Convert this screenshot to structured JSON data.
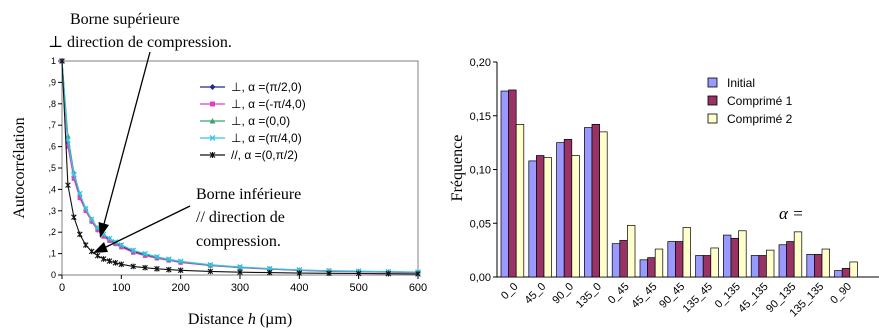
{
  "chart_data": [
    {
      "type": "line",
      "xlabel_prefix": "Distance ",
      "xlabel_var": "h",
      "xlabel_suffix": " (µm)",
      "ylabel": "Autocorrélation",
      "xlim": [
        0,
        600
      ],
      "ylim": [
        0,
        1
      ],
      "x_ticks": [
        "0",
        "100",
        "200",
        "300",
        "400",
        "500",
        "600"
      ],
      "y_ticks": [
        "0",
        ",1",
        ",2",
        ",3",
        ",4",
        ",5",
        ",6",
        ",7",
        ",8",
        ",9",
        "1"
      ],
      "grid": false,
      "legend_position": "top-right",
      "x": [
        0,
        10,
        20,
        30,
        40,
        50,
        60,
        70,
        80,
        90,
        100,
        120,
        140,
        160,
        180,
        200,
        250,
        300,
        350,
        400,
        450,
        500,
        550,
        600
      ],
      "series": [
        {
          "name": "⊥, α =(π/2,0)",
          "color": "#1f2a8a",
          "marker": "diamond",
          "values": [
            1.0,
            0.62,
            0.46,
            0.37,
            0.3,
            0.25,
            0.21,
            0.185,
            0.165,
            0.15,
            0.135,
            0.11,
            0.095,
            0.08,
            0.07,
            0.06,
            0.045,
            0.035,
            0.028,
            0.022,
            0.018,
            0.016,
            0.014,
            0.012
          ]
        },
        {
          "name": "⊥, α =(-π/4,0)",
          "color": "#e040c0",
          "marker": "square",
          "values": [
            1.0,
            0.6,
            0.45,
            0.36,
            0.3,
            0.25,
            0.21,
            0.18,
            0.16,
            0.145,
            0.13,
            0.105,
            0.09,
            0.078,
            0.068,
            0.058,
            0.044,
            0.034,
            0.027,
            0.021,
            0.017,
            0.015,
            0.013,
            0.011
          ]
        },
        {
          "name": "⊥, α =(0,0)",
          "color": "#3aa36a",
          "marker": "triangle",
          "values": [
            1.0,
            0.65,
            0.48,
            0.38,
            0.31,
            0.26,
            0.22,
            0.19,
            0.17,
            0.15,
            0.14,
            0.115,
            0.098,
            0.083,
            0.072,
            0.062,
            0.046,
            0.036,
            0.029,
            0.023,
            0.019,
            0.017,
            0.015,
            0.013
          ]
        },
        {
          "name": "⊥, α =(π/4,0)",
          "color": "#33c6e8",
          "marker": "x",
          "values": [
            1.0,
            0.63,
            0.47,
            0.38,
            0.31,
            0.26,
            0.22,
            0.19,
            0.17,
            0.155,
            0.14,
            0.115,
            0.1,
            0.085,
            0.074,
            0.064,
            0.048,
            0.038,
            0.03,
            0.024,
            0.02,
            0.018,
            0.016,
            0.014
          ]
        },
        {
          "name": "//,  α =(0,π/2)",
          "color": "#111111",
          "marker": "star",
          "values": [
            1.0,
            0.42,
            0.27,
            0.19,
            0.14,
            0.11,
            0.09,
            0.075,
            0.065,
            0.057,
            0.05,
            0.04,
            0.034,
            0.029,
            0.025,
            0.022,
            0.017,
            0.013,
            0.011,
            0.009,
            0.008,
            0.007,
            0.006,
            0.005
          ]
        }
      ],
      "annotations": [
        {
          "lines": [
            "Borne supérieure",
            "⊥ direction de compression."
          ]
        },
        {
          "lines": [
            "Borne inférieure",
            "// direction de",
            "compression."
          ]
        }
      ]
    },
    {
      "type": "bar",
      "ylabel": "Fréquence",
      "ylim": [
        0,
        0.2
      ],
      "y_ticks": [
        "0,00",
        "0,05",
        "0,10",
        "0,15",
        "0,20"
      ],
      "grid": false,
      "legend_position": "top-right",
      "annotation": "α =",
      "categories": [
        "0_0",
        "45_0",
        "90_0",
        "135_0",
        "0_45",
        "45_45",
        "90_45",
        "135_45",
        "0_135",
        "45_135",
        "90_135",
        "135_135",
        "0_90"
      ],
      "series": [
        {
          "name": "Initial",
          "color": "#9999ff",
          "values": [
            0.173,
            0.108,
            0.125,
            0.139,
            0.031,
            0.016,
            0.033,
            0.02,
            0.039,
            0.02,
            0.03,
            0.021,
            0.006
          ]
        },
        {
          "name": "Comprimé 1",
          "color": "#993366",
          "values": [
            0.174,
            0.113,
            0.128,
            0.142,
            0.034,
            0.018,
            0.033,
            0.02,
            0.036,
            0.02,
            0.033,
            0.021,
            0.008
          ]
        },
        {
          "name": "Comprimé 2",
          "color": "#ffffcc",
          "values": [
            0.142,
            0.111,
            0.113,
            0.135,
            0.048,
            0.026,
            0.046,
            0.027,
            0.043,
            0.025,
            0.042,
            0.026,
            0.014
          ]
        }
      ]
    }
  ]
}
